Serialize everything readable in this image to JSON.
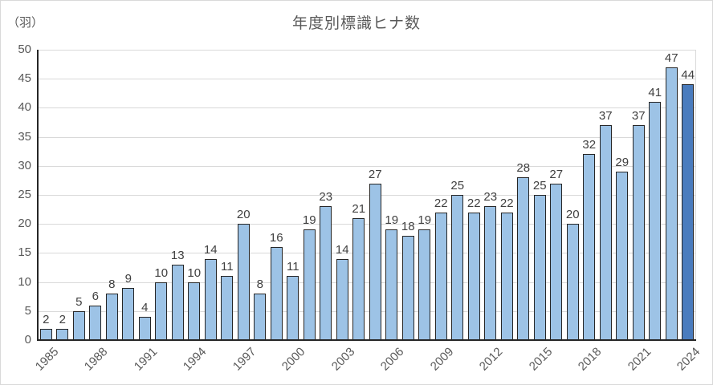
{
  "chart_data": {
    "type": "bar",
    "title": "年度別標識ヒナ数",
    "ylabel": "（羽）",
    "xlabel": "",
    "categories": [
      1985,
      1986,
      1987,
      1988,
      1989,
      1990,
      1991,
      1992,
      1993,
      1994,
      1995,
      1996,
      1997,
      1998,
      1999,
      2000,
      2001,
      2002,
      2003,
      2004,
      2005,
      2006,
      2007,
      2008,
      2009,
      2010,
      2011,
      2012,
      2013,
      2014,
      2015,
      2016,
      2017,
      2018,
      2019,
      2020,
      2021,
      2022,
      2023,
      2024
    ],
    "values": [
      2,
      2,
      5,
      6,
      8,
      9,
      4,
      10,
      13,
      10,
      14,
      11,
      20,
      8,
      16,
      11,
      19,
      23,
      14,
      21,
      27,
      19,
      18,
      19,
      22,
      25,
      22,
      23,
      22,
      28,
      25,
      27,
      20,
      32,
      37,
      29,
      37,
      41,
      47,
      44
    ],
    "x_tick_labels": [
      "1985",
      "1988",
      "1991",
      "1994",
      "1997",
      "2000",
      "2003",
      "2006",
      "2009",
      "2012",
      "2015",
      "2018",
      "2021",
      "2024"
    ],
    "x_tick_every": 3,
    "ylim": [
      0,
      50
    ],
    "ytick_step": 5,
    "grid": true,
    "legend": "none",
    "data_labels": true,
    "colors": {
      "bar_fill": "#9DC3E6",
      "bar_fill_last": "#4A7CBE",
      "bar_border": "#262626",
      "gridline": "#D9D9D9",
      "axis_line": "#262626",
      "plot_border": "#D9D9D9",
      "title_text": "#595959",
      "axis_text": "#595959",
      "label_text": "#404040",
      "background": "#FFFFFF"
    }
  }
}
